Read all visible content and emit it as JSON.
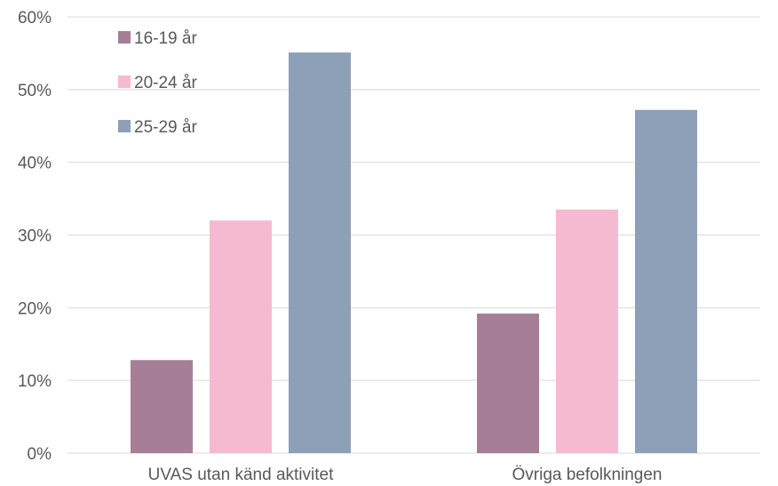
{
  "chart_data": {
    "type": "bar",
    "categories": [
      "UVAS utan känd aktivitet",
      "Övriga befolkningen"
    ],
    "series": [
      {
        "name": "16-19 år",
        "values": [
          12.8,
          19.2
        ],
        "color": "#a67f96"
      },
      {
        "name": "20-24 år",
        "values": [
          32.0,
          33.5
        ],
        "color": "#f5bad1"
      },
      {
        "name": "25-29 år",
        "values": [
          55.1,
          47.2
        ],
        "color": "#8e9fb8"
      }
    ],
    "ylim": [
      0,
      60
    ],
    "yticks": [
      0,
      10,
      20,
      30,
      40,
      50,
      60
    ],
    "ytick_labels": [
      "0%",
      "10%",
      "20%",
      "30%",
      "40%",
      "50%",
      "60%"
    ],
    "title": "",
    "xlabel": "",
    "ylabel": "",
    "grid": true,
    "legend_position": "top-left"
  }
}
